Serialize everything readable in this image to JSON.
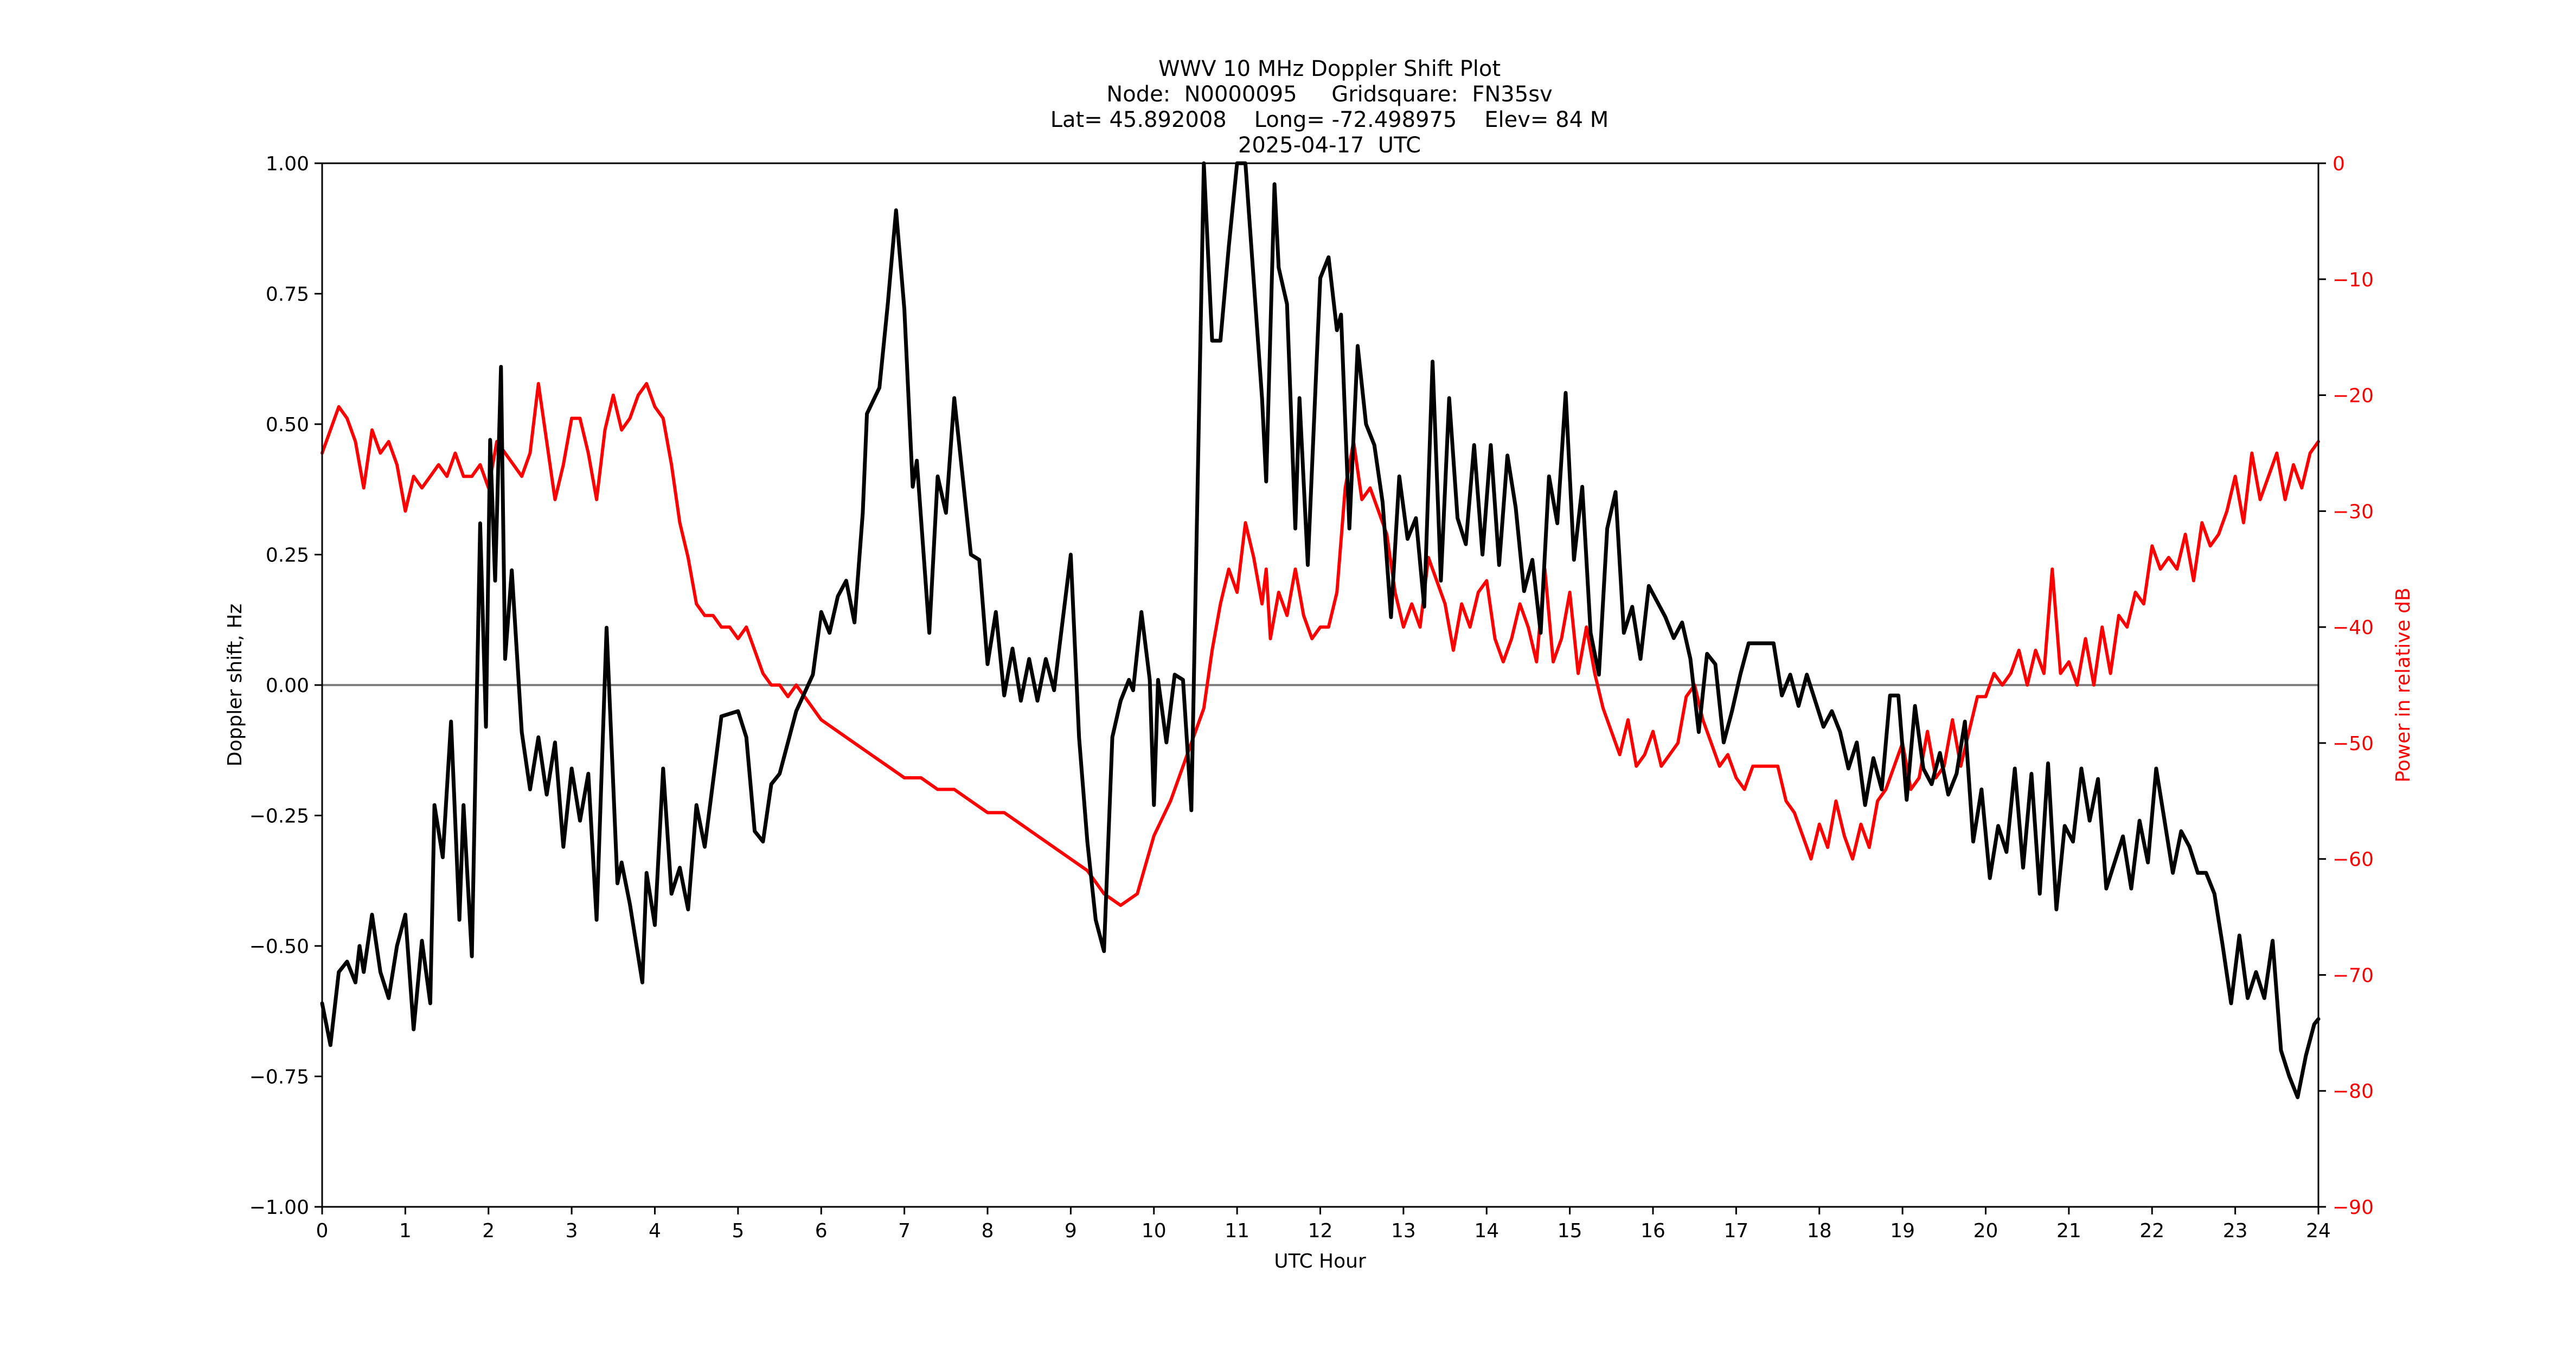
{
  "title": {
    "line1": "WWV 10 MHz Doppler Shift Plot",
    "line2": "Node:  N0000095     Gridsquare:  FN35sv",
    "line3": "Lat= 45.892008    Long= -72.498975    Elev= 84 M",
    "line4": "2025-04-17  UTC"
  },
  "colors": {
    "doppler": "#000000",
    "power": "#ff0000",
    "zero_line": "#808080",
    "axes": "#000000"
  },
  "chart_data": {
    "type": "line",
    "title": "WWV 10 MHz Doppler Shift Plot",
    "subtitle": [
      "Node:  N0000095     Gridsquare:  FN35sv",
      "Lat= 45.892008    Long= -72.498975    Elev= 84 M",
      "2025-04-17  UTC"
    ],
    "xlabel": "UTC Hour",
    "ylabel": "Doppler shift, Hz",
    "y2label": "Power in relative dB",
    "xlim": [
      0,
      24
    ],
    "ylim": [
      -1.0,
      1.0
    ],
    "y2lim": [
      -90,
      0
    ],
    "xticks": [
      0,
      1,
      2,
      3,
      4,
      5,
      6,
      7,
      8,
      9,
      10,
      11,
      12,
      13,
      14,
      15,
      16,
      17,
      18,
      19,
      20,
      21,
      22,
      23,
      24
    ],
    "yticks": [
      "1.00",
      "0.75",
      "0.50",
      "0.25",
      "0.00",
      "−0.25",
      "−0.50",
      "−0.75",
      "−1.00"
    ],
    "ytick_values": [
      1.0,
      0.75,
      0.5,
      0.25,
      0.0,
      -0.25,
      -0.5,
      -0.75,
      -1.0
    ],
    "y2ticks": [
      "0",
      "−10",
      "−20",
      "−30",
      "−40",
      "−50",
      "−60",
      "−70",
      "−80",
      "−90"
    ],
    "y2tick_values": [
      0,
      -10,
      -20,
      -30,
      -40,
      -50,
      -60,
      -70,
      -80,
      -90
    ],
    "grid": false,
    "zero_line": true,
    "legend": null,
    "series": [
      {
        "name": "Doppler shift (Hz)",
        "axis": "left",
        "color": "#000000",
        "x": [
          0,
          0.1,
          0.2,
          0.3,
          0.4,
          0.45,
          0.5,
          0.6,
          0.7,
          0.8,
          0.9,
          1.0,
          1.1,
          1.2,
          1.3,
          1.35,
          1.45,
          1.55,
          1.65,
          1.7,
          1.8,
          1.9,
          1.97,
          2.02,
          2.08,
          2.15,
          2.2,
          2.28,
          2.4,
          2.5,
          2.6,
          2.7,
          2.8,
          2.9,
          3.0,
          3.1,
          3.2,
          3.3,
          3.42,
          3.55,
          3.6,
          3.7,
          3.85,
          3.9,
          4.0,
          4.1,
          4.2,
          4.3,
          4.4,
          4.5,
          4.6,
          4.8,
          5.0,
          5.1,
          5.2,
          5.3,
          5.4,
          5.5,
          5.7,
          5.9,
          6.0,
          6.1,
          6.2,
          6.3,
          6.4,
          6.5,
          6.55,
          6.7,
          6.8,
          6.9,
          7.0,
          7.1,
          7.15,
          7.3,
          7.4,
          7.5,
          7.6,
          7.7,
          7.8,
          7.9,
          8.0,
          8.1,
          8.2,
          8.3,
          8.4,
          8.5,
          8.6,
          8.7,
          8.8,
          9.0,
          9.1,
          9.2,
          9.3,
          9.4,
          9.5,
          9.6,
          9.7,
          9.75,
          9.85,
          9.95,
          10.0,
          10.05,
          10.15,
          10.25,
          10.35,
          10.45,
          10.6,
          10.7,
          10.8,
          10.9,
          11.0,
          11.1,
          11.3,
          11.35,
          11.45,
          11.5,
          11.6,
          11.7,
          11.75,
          11.85,
          12.0,
          12.1,
          12.2,
          12.25,
          12.35,
          12.45,
          12.55,
          12.65,
          12.75,
          12.85,
          12.95,
          13.05,
          13.15,
          13.25,
          13.35,
          13.45,
          13.55,
          13.65,
          13.75,
          13.85,
          13.95,
          14.05,
          14.15,
          14.25,
          14.35,
          14.45,
          14.55,
          14.65,
          14.75,
          14.85,
          14.95,
          15.05,
          15.15,
          15.25,
          15.35,
          15.45,
          15.55,
          15.65,
          15.75,
          15.85,
          15.95,
          16.05,
          16.15,
          16.25,
          16.35,
          16.45,
          16.55,
          16.65,
          16.75,
          16.85,
          16.95,
          17.05,
          17.15,
          17.45,
          17.55,
          17.65,
          17.75,
          17.85,
          17.95,
          18.05,
          18.15,
          18.25,
          18.35,
          18.45,
          18.55,
          18.65,
          18.75,
          18.85,
          18.95,
          19.05,
          19.15,
          19.25,
          19.35,
          19.45,
          19.55,
          19.65,
          19.75,
          19.85,
          19.95,
          20.05,
          20.15,
          20.25,
          20.35,
          20.45,
          20.55,
          20.65,
          20.75,
          20.85,
          20.95,
          21.05,
          21.15,
          21.25,
          21.35,
          21.45,
          21.55,
          21.65,
          21.75,
          21.85,
          21.95,
          22.05,
          22.15,
          22.25,
          22.35,
          22.45,
          22.55,
          22.65,
          22.75,
          22.85,
          22.95,
          23.05,
          23.15,
          23.25,
          23.35,
          23.45,
          23.55,
          23.65,
          23.75,
          23.85,
          23.95,
          24.0
        ],
        "values": [
          -0.61,
          -0.69,
          -0.55,
          -0.53,
          -0.57,
          -0.5,
          -0.55,
          -0.44,
          -0.55,
          -0.6,
          -0.5,
          -0.44,
          -0.66,
          -0.49,
          -0.61,
          -0.23,
          -0.33,
          -0.07,
          -0.45,
          -0.23,
          -0.52,
          0.31,
          -0.08,
          0.47,
          0.2,
          0.61,
          0.05,
          0.22,
          -0.09,
          -0.2,
          -0.1,
          -0.21,
          -0.11,
          -0.31,
          -0.16,
          -0.26,
          -0.17,
          -0.45,
          0.11,
          -0.38,
          -0.34,
          -0.42,
          -0.57,
          -0.36,
          -0.46,
          -0.16,
          -0.4,
          -0.35,
          -0.43,
          -0.23,
          -0.31,
          -0.06,
          -0.05,
          -0.1,
          -0.28,
          -0.3,
          -0.19,
          -0.17,
          -0.05,
          0.02,
          0.14,
          0.1,
          0.17,
          0.2,
          0.12,
          0.33,
          0.52,
          0.57,
          0.73,
          0.91,
          0.72,
          0.38,
          0.43,
          0.1,
          0.4,
          0.33,
          0.55,
          0.4,
          0.25,
          0.24,
          0.04,
          0.14,
          -0.02,
          0.07,
          -0.03,
          0.05,
          -0.03,
          0.05,
          -0.01,
          0.25,
          -0.1,
          -0.3,
          -0.45,
          -0.51,
          -0.1,
          -0.03,
          0.01,
          -0.01,
          0.14,
          0.01,
          -0.23,
          0.01,
          -0.11,
          0.02,
          0.01,
          -0.24,
          1.0,
          0.66,
          0.66,
          0.84,
          1.0,
          1.0,
          0.55,
          0.39,
          0.96,
          0.8,
          0.73,
          0.3,
          0.55,
          0.23,
          0.78,
          0.82,
          0.68,
          0.71,
          0.3,
          0.65,
          0.5,
          0.46,
          0.35,
          0.13,
          0.4,
          0.28,
          0.32,
          0.15,
          0.62,
          0.2,
          0.55,
          0.32,
          0.27,
          0.46,
          0.25,
          0.46,
          0.23,
          0.44,
          0.34,
          0.18,
          0.24,
          0.1,
          0.4,
          0.31,
          0.56,
          0.24,
          0.38,
          0.1,
          0.02,
          0.3,
          0.37,
          0.1,
          0.15,
          0.05,
          0.19,
          0.16,
          0.13,
          0.09,
          0.12,
          0.05,
          -0.09,
          0.06,
          0.04,
          -0.11,
          -0.05,
          0.02,
          0.08,
          0.08,
          -0.02,
          0.02,
          -0.04,
          0.02,
          -0.03,
          -0.08,
          -0.05,
          -0.09,
          -0.16,
          -0.11,
          -0.23,
          -0.14,
          -0.2,
          -0.02,
          -0.02,
          -0.22,
          -0.04,
          -0.16,
          -0.19,
          -0.13,
          -0.21,
          -0.17,
          -0.07,
          -0.3,
          -0.2,
          -0.37,
          -0.27,
          -0.32,
          -0.16,
          -0.35,
          -0.17,
          -0.4,
          -0.15,
          -0.43,
          -0.27,
          -0.3,
          -0.16,
          -0.26,
          -0.18,
          -0.39,
          -0.34,
          -0.29,
          -0.39,
          -0.26,
          -0.34,
          -0.16,
          -0.26,
          -0.36,
          -0.28,
          -0.31,
          -0.36,
          -0.36,
          -0.4,
          -0.5,
          -0.61,
          -0.48,
          -0.6,
          -0.55,
          -0.6,
          -0.49,
          -0.7,
          -0.75,
          -0.79,
          -0.71,
          -0.65,
          -0.64
        ]
      },
      {
        "name": "Power (relative dB)",
        "axis": "right",
        "color": "#ff0000",
        "x": [
          0,
          0.1,
          0.2,
          0.3,
          0.4,
          0.5,
          0.6,
          0.7,
          0.8,
          0.9,
          1.0,
          1.1,
          1.2,
          1.3,
          1.4,
          1.5,
          1.6,
          1.7,
          1.8,
          1.9,
          2.0,
          2.1,
          2.2,
          2.3,
          2.4,
          2.5,
          2.6,
          2.7,
          2.8,
          2.9,
          3.0,
          3.1,
          3.2,
          3.3,
          3.4,
          3.5,
          3.6,
          3.7,
          3.8,
          3.9,
          4.0,
          4.1,
          4.2,
          4.3,
          4.4,
          4.5,
          4.6,
          4.7,
          4.8,
          4.9,
          5.0,
          5.1,
          5.2,
          5.3,
          5.4,
          5.5,
          5.6,
          5.7,
          5.8,
          5.9,
          6.0,
          6.2,
          6.4,
          6.6,
          6.8,
          7.0,
          7.2,
          7.4,
          7.6,
          7.8,
          8.0,
          8.2,
          8.4,
          8.6,
          8.8,
          9.0,
          9.2,
          9.4,
          9.6,
          9.8,
          10.0,
          10.2,
          10.4,
          10.6,
          10.7,
          10.8,
          10.9,
          11.0,
          11.1,
          11.2,
          11.3,
          11.35,
          11.4,
          11.5,
          11.6,
          11.7,
          11.8,
          11.9,
          12.0,
          12.1,
          12.2,
          12.3,
          12.4,
          12.5,
          12.6,
          12.7,
          12.8,
          12.9,
          13.0,
          13.1,
          13.2,
          13.3,
          13.4,
          13.5,
          13.6,
          13.7,
          13.8,
          13.9,
          14.0,
          14.1,
          14.2,
          14.3,
          14.4,
          14.5,
          14.6,
          14.7,
          14.8,
          14.9,
          15.0,
          15.1,
          15.2,
          15.3,
          15.4,
          15.5,
          15.6,
          15.7,
          15.8,
          15.9,
          16.0,
          16.1,
          16.2,
          16.3,
          16.4,
          16.5,
          16.6,
          16.7,
          16.8,
          16.9,
          17.0,
          17.1,
          17.2,
          17.3,
          17.5,
          17.6,
          17.7,
          17.8,
          17.9,
          18.0,
          18.1,
          18.2,
          18.3,
          18.4,
          18.5,
          18.6,
          18.7,
          18.8,
          18.9,
          19.0,
          19.1,
          19.2,
          19.3,
          19.4,
          19.5,
          19.6,
          19.7,
          19.8,
          19.9,
          20.0,
          20.1,
          20.2,
          20.3,
          20.4,
          20.5,
          20.6,
          20.7,
          20.8,
          20.9,
          21.0,
          21.1,
          21.2,
          21.3,
          21.4,
          21.5,
          21.6,
          21.7,
          21.8,
          21.9,
          22.0,
          22.1,
          22.2,
          22.3,
          22.4,
          22.5,
          22.6,
          22.7,
          22.8,
          22.9,
          23.0,
          23.1,
          23.2,
          23.3,
          23.4,
          23.5,
          23.6,
          23.7,
          23.8,
          23.9,
          24.0
        ],
        "values": [
          -25,
          -23,
          -21,
          -22,
          -24,
          -28,
          -23,
          -25,
          -24,
          -26,
          -30,
          -27,
          -28,
          -27,
          -26,
          -27,
          -25,
          -27,
          -27,
          -26,
          -28,
          -24,
          -25,
          -26,
          -27,
          -25,
          -19,
          -24,
          -29,
          -26,
          -22,
          -22,
          -25,
          -29,
          -23,
          -20,
          -23,
          -22,
          -20,
          -19,
          -21,
          -22,
          -26,
          -31,
          -34,
          -38,
          -39,
          -39,
          -40,
          -40,
          -41,
          -40,
          -42,
          -44,
          -45,
          -45,
          -46,
          -45,
          -46,
          -47,
          -48,
          -49,
          -50,
          -51,
          -52,
          -53,
          -53,
          -54,
          -54,
          -55,
          -56,
          -56,
          -57,
          -58,
          -59,
          -60,
          -61,
          -63,
          -64,
          -63,
          -58,
          -55,
          -51,
          -47,
          -42,
          -38,
          -35,
          -37,
          -31,
          -34,
          -38,
          -35,
          -41,
          -37,
          -39,
          -35,
          -39,
          -41,
          -40,
          -40,
          -37,
          -28,
          -24,
          -29,
          -28,
          -30,
          -32,
          -37,
          -40,
          -38,
          -40,
          -34,
          -36,
          -38,
          -42,
          -38,
          -40,
          -37,
          -36,
          -41,
          -43,
          -41,
          -38,
          -40,
          -43,
          -35,
          -43,
          -41,
          -37,
          -44,
          -40,
          -44,
          -47,
          -49,
          -51,
          -48,
          -52,
          -51,
          -49,
          -52,
          -51,
          -50,
          -46,
          -45,
          -48,
          -50,
          -52,
          -51,
          -53,
          -54,
          -52,
          -52,
          -52,
          -55,
          -56,
          -58,
          -60,
          -57,
          -59,
          -55,
          -58,
          -60,
          -57,
          -59,
          -55,
          -54,
          -52,
          -50,
          -54,
          -53,
          -49,
          -53,
          -52,
          -48,
          -52,
          -49,
          -46,
          -46,
          -44,
          -45,
          -44,
          -42,
          -45,
          -42,
          -44,
          -35,
          -44,
          -43,
          -45,
          -41,
          -45,
          -40,
          -44,
          -39,
          -40,
          -37,
          -38,
          -33,
          -35,
          -34,
          -35,
          -32,
          -36,
          -31,
          -33,
          -32,
          -30,
          -27,
          -31,
          -25,
          -29,
          -27,
          -25,
          -29,
          -26,
          -28,
          -25,
          -24
        ]
      }
    ]
  }
}
